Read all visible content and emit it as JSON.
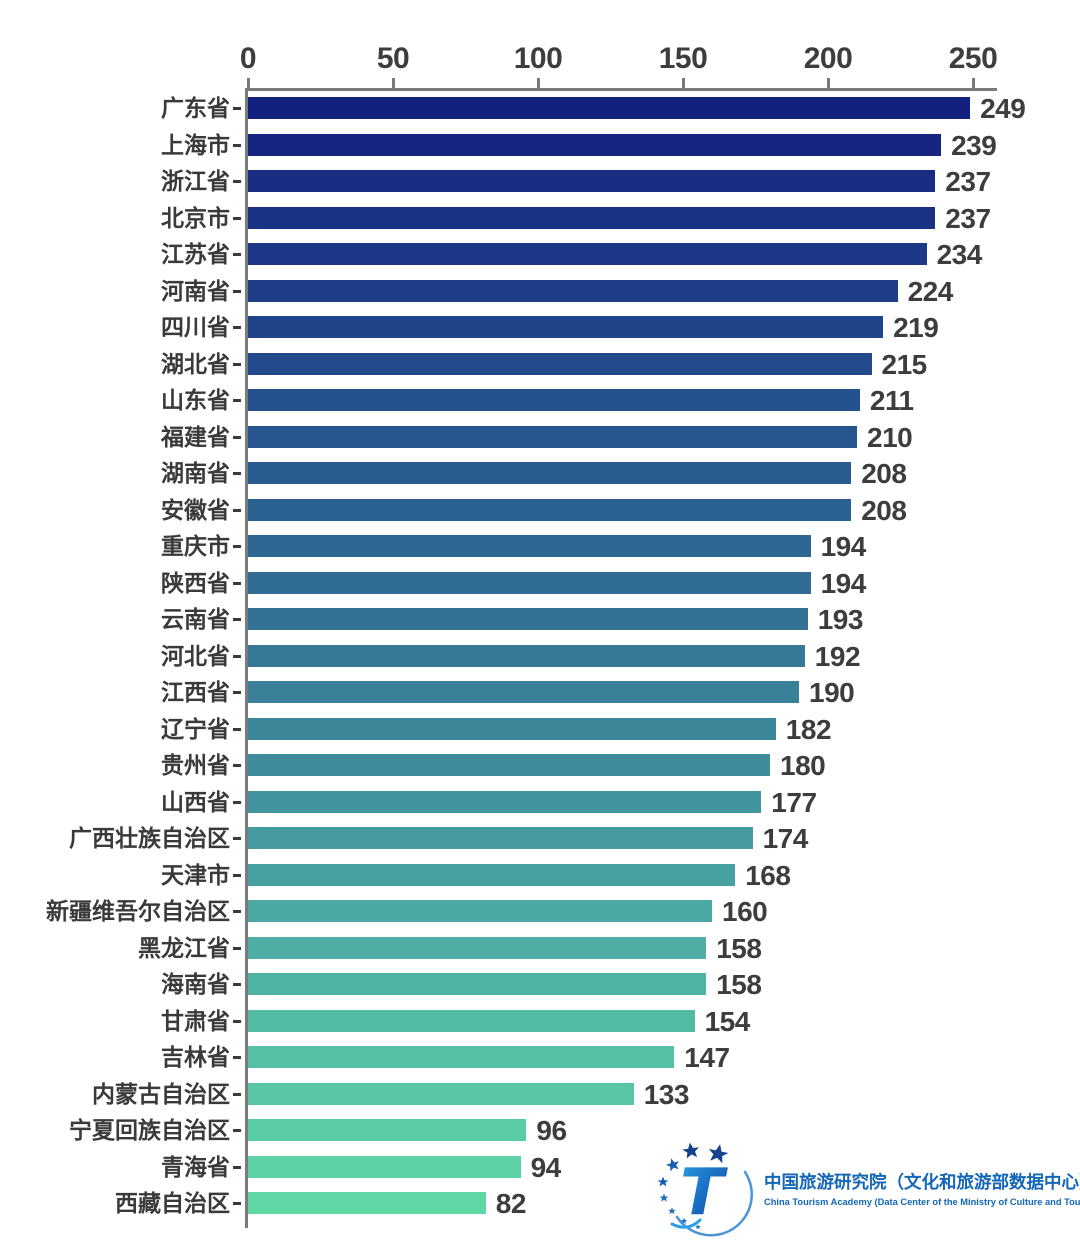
{
  "chart_data": {
    "type": "bar",
    "orientation": "horizontal",
    "title": "",
    "xlabel": "",
    "ylabel": "",
    "x_axis_ticks": [
      0,
      50,
      100,
      150,
      200,
      250
    ],
    "x_range": [
      0,
      258
    ],
    "grid": false,
    "legend": "none",
    "categories": [
      "广东省",
      "上海市",
      "浙江省",
      "北京市",
      "江苏省",
      "河南省",
      "四川省",
      "湖北省",
      "山东省",
      "福建省",
      "湖南省",
      "安徽省",
      "重庆市",
      "陕西省",
      "云南省",
      "河北省",
      "江西省",
      "辽宁省",
      "贵州省",
      "山西省",
      "广西壮族自治区",
      "天津市",
      "新疆维吾尔自治区",
      "黑龙江省",
      "海南省",
      "甘肃省",
      "吉林省",
      "内蒙古自治区",
      "宁夏回族自治区",
      "青海省",
      "西藏自治区"
    ],
    "values": [
      249,
      239,
      237,
      237,
      234,
      224,
      219,
      215,
      211,
      210,
      208,
      208,
      194,
      194,
      193,
      192,
      190,
      182,
      180,
      177,
      174,
      168,
      160,
      158,
      158,
      154,
      147,
      133,
      96,
      94,
      82
    ],
    "bar_colors": [
      "#14207E",
      "#162680",
      "#182C82",
      "#1A3284",
      "#1C3886",
      "#1E3E88",
      "#20448A",
      "#224A8C",
      "#24508D",
      "#27558F",
      "#295B90",
      "#2B6191",
      "#2E6793",
      "#306C94",
      "#337295",
      "#367997",
      "#398099",
      "#3C869A",
      "#3F8D9C",
      "#42949E",
      "#459B9F",
      "#48A1A1",
      "#4BA8A3",
      "#4EAEA3",
      "#50B4A4",
      "#53BAA4",
      "#55C0A5",
      "#58C6A5",
      "#5ACCA5",
      "#5DD2A6",
      "#5FD8A6"
    ],
    "axis_color": "#7a7a7a",
    "tick_label_color": "#3d3d3d",
    "category_label_color": "#3a3a3a",
    "value_label_color": "#3d3d3d"
  },
  "logo": {
    "title_zh": "中国旅游研究院（文化和旅游部数据中心）",
    "title_en": "China Tourism Academy (Data Center of the Ministry of Culture and Tourism)",
    "text_color": "#1467b8",
    "star_color_dark": "#15418f",
    "star_color_mid": "#1a5cb0",
    "star_color_light": "#1e6fc4",
    "swoosh_color": "#4a94d8",
    "t_gradient_start": "#2b9fe8",
    "t_gradient_end": "#0b3f9d"
  }
}
